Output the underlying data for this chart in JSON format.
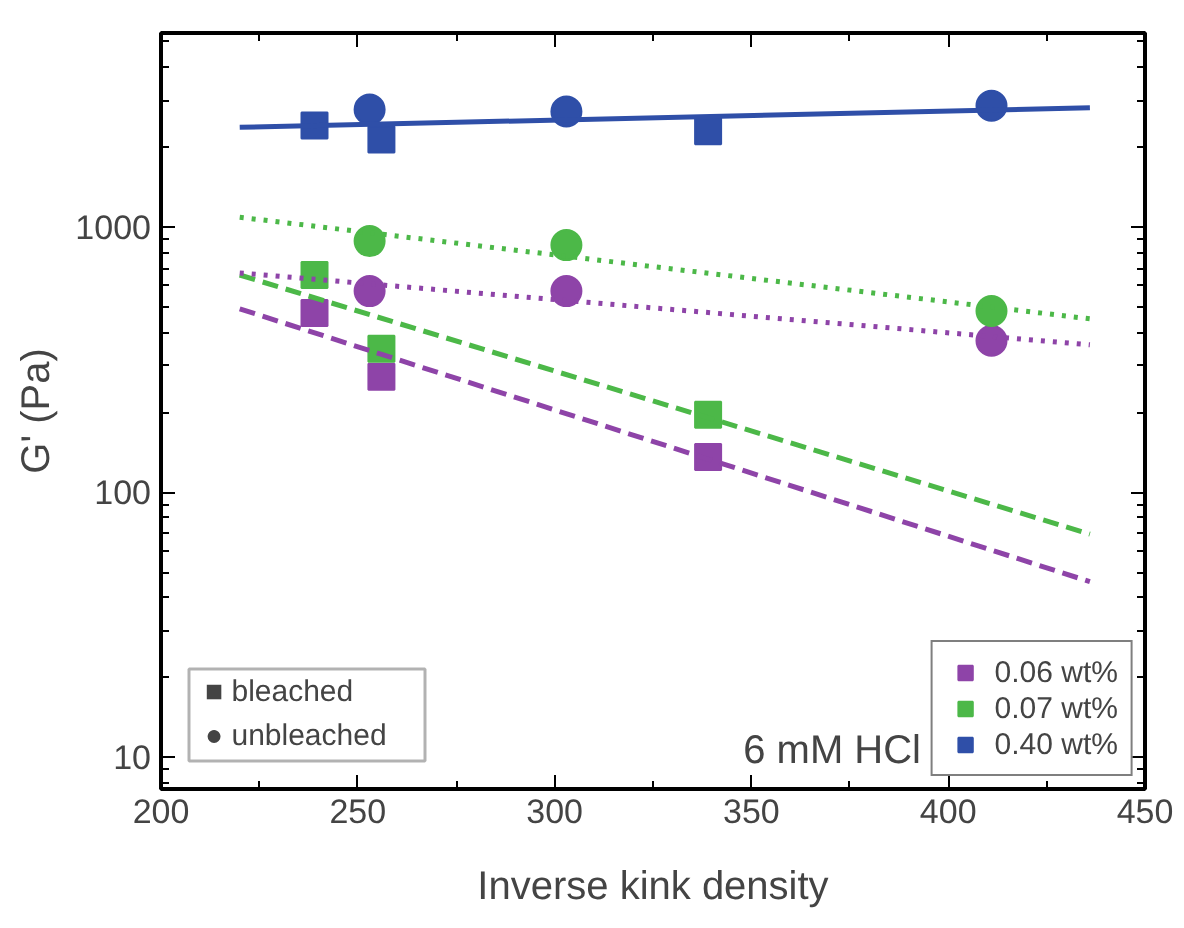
{
  "chart_data": {
    "type": "scatter",
    "xlabel": "Inverse kink density",
    "ylabel": "G' (Pa)",
    "log": "y",
    "xlim": [
      200,
      450
    ],
    "xticks": [
      200,
      250,
      300,
      350,
      400,
      450
    ],
    "ylim": [
      7.6,
      5400
    ],
    "yticks": [
      10,
      100,
      1000
    ],
    "grid": false,
    "legend": "bottom right",
    "annotations": [
      "■ bleached",
      "● unbleached",
      "6 mM HCl"
    ],
    "series": [
      {
        "name": "0.06 wt%",
        "marker": "square",
        "color": "#8e44a8",
        "x": [
          239,
          256,
          339
        ],
        "values": [
          475,
          273,
          136
        ]
      },
      {
        "name": "0.07 wt%",
        "marker": "square",
        "color": "#4cb848",
        "x": [
          239,
          256,
          339
        ],
        "values": [
          660,
          348,
          196
        ]
      },
      {
        "name": "0.40 wt%",
        "marker": "square",
        "color": "#2f4fa8",
        "x": [
          239,
          256,
          339
        ],
        "values": [
          2420,
          2140,
          2300
        ]
      },
      {
        "marker": "circle",
        "color": "#8e44a8",
        "x": [
          253,
          303,
          411
        ],
        "values": [
          574,
          574,
          373
        ]
      },
      {
        "marker": "circle",
        "color": "#4cb848",
        "x": [
          253,
          303,
          411
        ],
        "values": [
          886,
          856,
          483
        ]
      },
      {
        "marker": "circle",
        "color": "#2f4fa8",
        "x": [
          253,
          303,
          411
        ],
        "values": [
          2780,
          2730,
          2870
        ]
      },
      {
        "type": "line",
        "line_style": "dashed",
        "color": "#8e44a8",
        "x": [
          220,
          436
        ],
        "values": [
          492,
          46
        ]
      },
      {
        "type": "line",
        "line_style": "dashed",
        "color": "#4cb848",
        "x": [
          220,
          436
        ],
        "values": [
          660,
          69.5
        ]
      },
      {
        "type": "line",
        "line_style": "dotted",
        "color": "#8e44a8",
        "x": [
          220,
          436
        ],
        "values": [
          672,
          360
        ]
      },
      {
        "type": "line",
        "line_style": "dotted",
        "color": "#4cb848",
        "x": [
          220,
          436
        ],
        "values": [
          1090,
          451
        ]
      },
      {
        "type": "line",
        "line_style": "solid",
        "color": "#2f4fa8",
        "x": [
          220,
          436
        ],
        "values": [
          2380,
          2820
        ]
      }
    ]
  }
}
